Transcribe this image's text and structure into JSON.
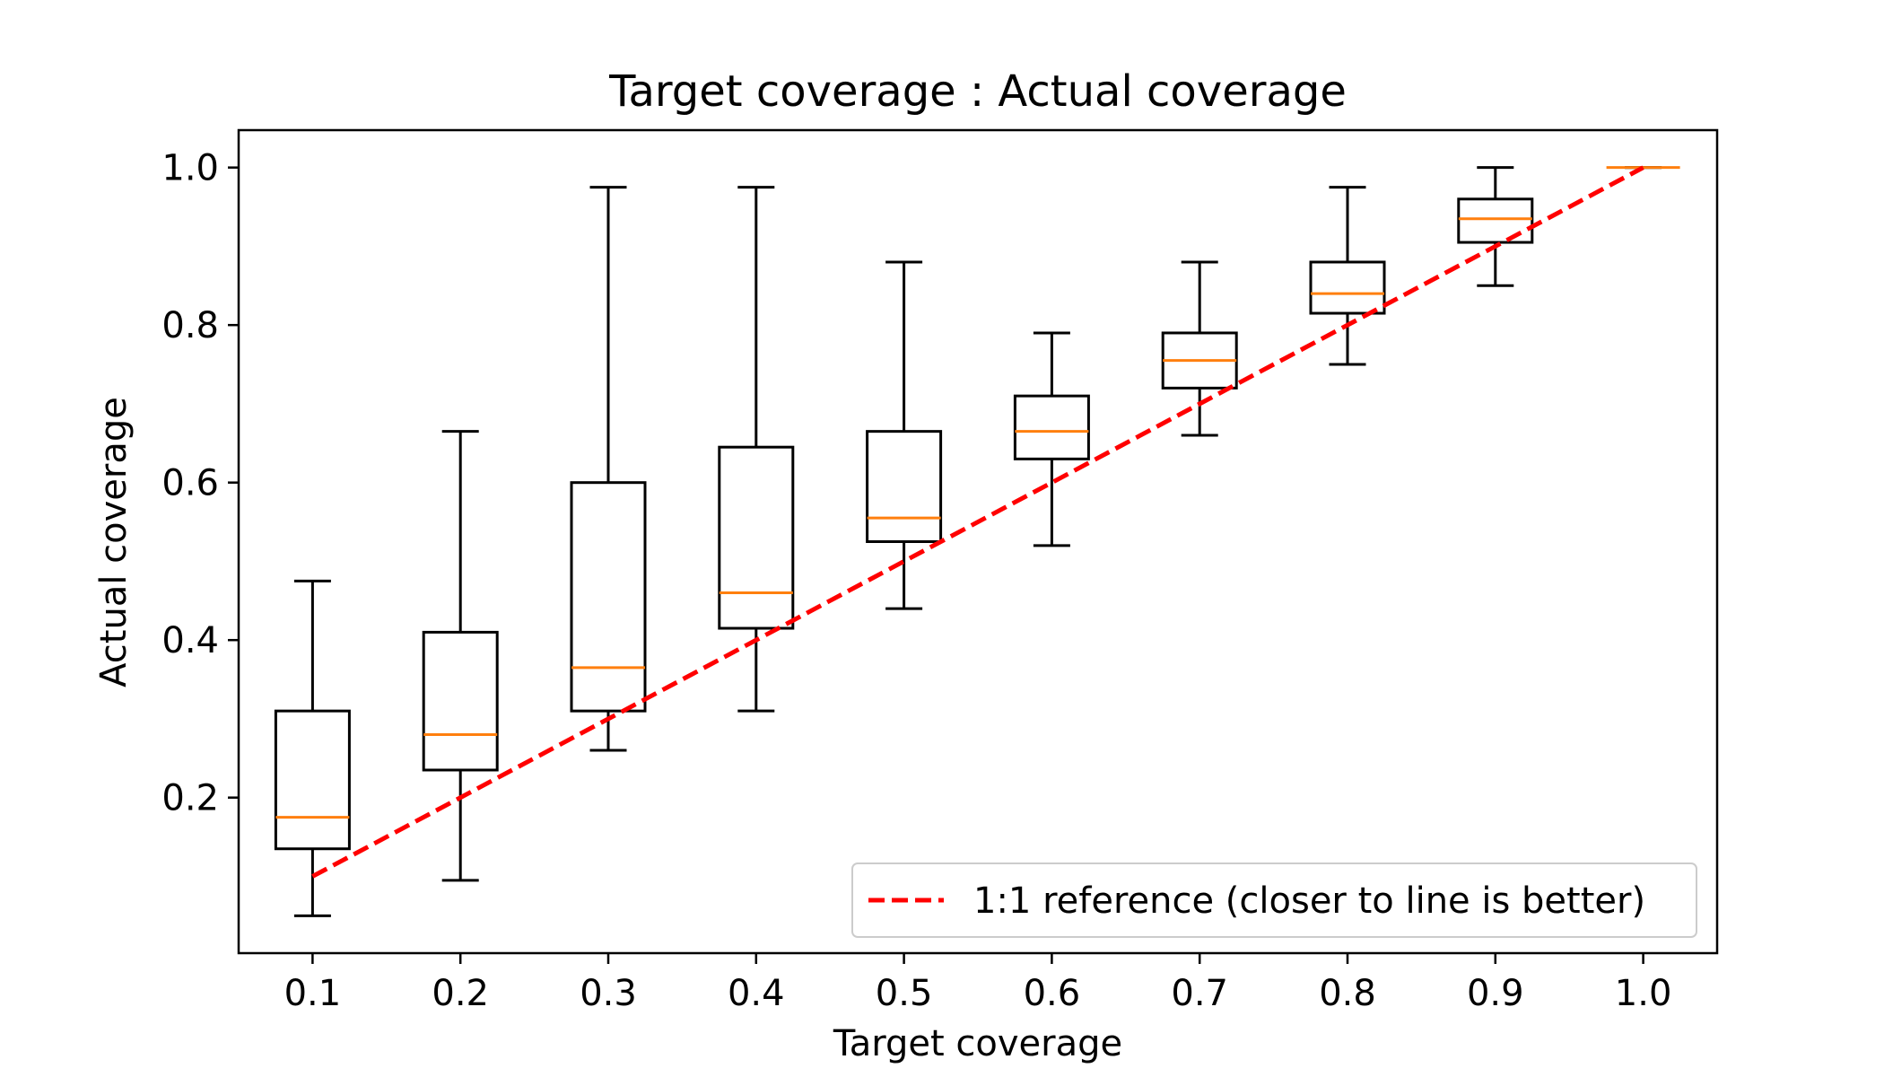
{
  "chart_data": {
    "type": "box",
    "title": "Target coverage : Actual coverage",
    "xlabel": "Target coverage",
    "ylabel": "Actual coverage",
    "categories": [
      "0.1",
      "0.2",
      "0.3",
      "0.4",
      "0.5",
      "0.6",
      "0.7",
      "0.8",
      "0.9",
      "1.0"
    ],
    "x_values": [
      0.1,
      0.2,
      0.3,
      0.4,
      0.5,
      0.6,
      0.7,
      0.8,
      0.9,
      1.0
    ],
    "boxes": [
      {
        "whisker_low": 0.05,
        "q1": 0.135,
        "median": 0.175,
        "q3": 0.31,
        "whisker_high": 0.475
      },
      {
        "whisker_low": 0.095,
        "q1": 0.235,
        "median": 0.28,
        "q3": 0.41,
        "whisker_high": 0.665
      },
      {
        "whisker_low": 0.26,
        "q1": 0.31,
        "median": 0.365,
        "q3": 0.6,
        "whisker_high": 0.975
      },
      {
        "whisker_low": 0.31,
        "q1": 0.415,
        "median": 0.46,
        "q3": 0.645,
        "whisker_high": 0.975
      },
      {
        "whisker_low": 0.44,
        "q1": 0.525,
        "median": 0.555,
        "q3": 0.665,
        "whisker_high": 0.88
      },
      {
        "whisker_low": 0.52,
        "q1": 0.63,
        "median": 0.665,
        "q3": 0.71,
        "whisker_high": 0.79
      },
      {
        "whisker_low": 0.66,
        "q1": 0.72,
        "median": 0.755,
        "q3": 0.79,
        "whisker_high": 0.88
      },
      {
        "whisker_low": 0.75,
        "q1": 0.815,
        "median": 0.84,
        "q3": 0.88,
        "whisker_high": 0.975
      },
      {
        "whisker_low": 0.85,
        "q1": 0.905,
        "median": 0.935,
        "q3": 0.96,
        "whisker_high": 1.0
      },
      {
        "whisker_low": 1.0,
        "q1": 1.0,
        "median": 1.0,
        "q3": 1.0,
        "whisker_high": 1.0
      }
    ],
    "reference_line": {
      "label": "1:1 reference (closer to line is better)",
      "x": [
        0.1,
        1.0
      ],
      "y": [
        0.1,
        1.0
      ],
      "style": "dashed",
      "color": "#ff0000"
    },
    "y_ticks": [
      0.2,
      0.4,
      0.6,
      0.8,
      1.0
    ],
    "y_tick_labels": [
      "0.2",
      "0.4",
      "0.6",
      "0.8",
      "1.0"
    ],
    "xlim": [
      0.05,
      1.05
    ],
    "ylim": [
      0.0025,
      1.0475
    ],
    "legend_position": "lower-right",
    "grid": false,
    "colors": {
      "box": "#000000",
      "median": "#ff7f0e",
      "reference": "#ff0000"
    }
  }
}
